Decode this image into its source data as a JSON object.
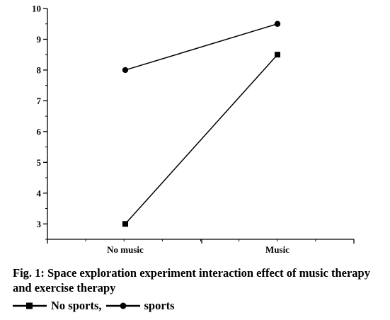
{
  "chart_data": {
    "type": "line",
    "categories": [
      "No music",
      "Music"
    ],
    "series": [
      {
        "name": "No sports",
        "marker": "square",
        "values": [
          3,
          8.5
        ]
      },
      {
        "name": "sports",
        "marker": "circle",
        "values": [
          8,
          9.5
        ]
      }
    ],
    "y_ticks": [
      "3",
      "4",
      "5",
      "6",
      "7",
      "8",
      "9",
      "10"
    ],
    "ylim": [
      2.5,
      10
    ],
    "title": "",
    "xlabel": "",
    "ylabel": "",
    "grid": false,
    "line_color": "#000000"
  },
  "caption": {
    "text": "Fig. 1: Space exploration experiment interaction effect of music therapy and exercise therapy"
  },
  "legend": {
    "separator": ","
  }
}
